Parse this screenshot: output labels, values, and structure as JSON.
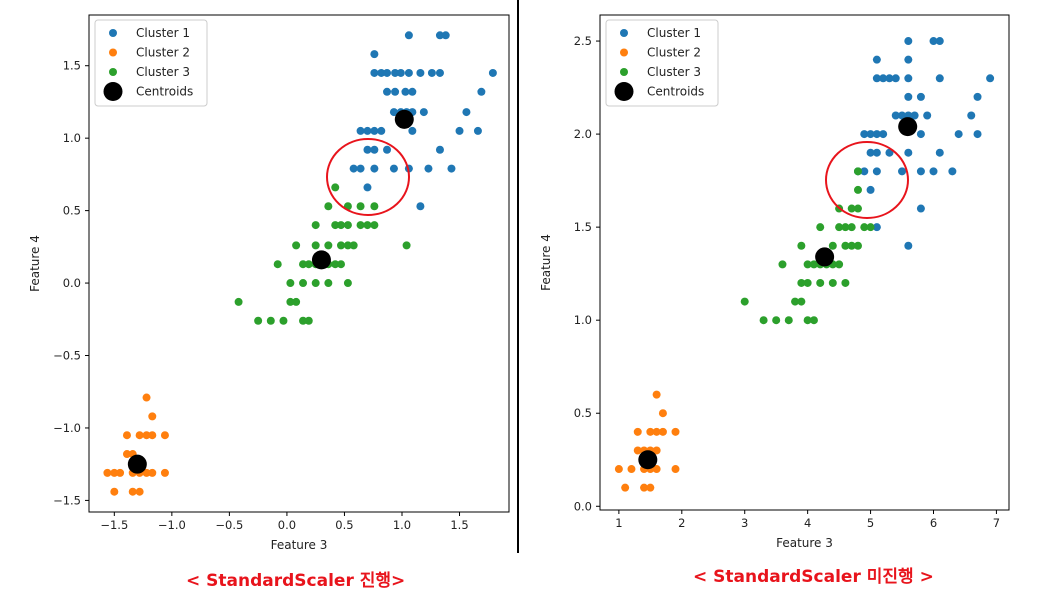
{
  "chart_data": [
    {
      "type": "scatter",
      "xlabel": "Feature 3",
      "ylabel": "Feature 4",
      "xlim": [
        -1.72,
        1.93
      ],
      "ylim": [
        -1.58,
        1.85
      ],
      "xticks": [
        -1.5,
        -1.0,
        -0.5,
        0.0,
        0.5,
        1.0,
        1.5
      ],
      "xtick_labels": [
        "−1.5",
        "−1.0",
        "−0.5",
        "0.0",
        "0.5",
        "1.0",
        "1.5"
      ],
      "yticks": [
        -1.5,
        -1.0,
        -0.5,
        0.0,
        0.5,
        1.0,
        1.5
      ],
      "ytick_labels": [
        "−1.5",
        "−1.0",
        "−0.5",
        "0.0",
        "0.5",
        "1.0",
        "1.5"
      ],
      "legend_position": "top-left",
      "series": [
        {
          "name": "Cluster 1",
          "color": "#1f77b4",
          "points": [
            [
              0.76,
              1.58
            ],
            [
              1.06,
              1.71
            ],
            [
              1.26,
              1.45
            ],
            [
              1.33,
              1.71
            ],
            [
              1.38,
              1.71
            ],
            [
              1.79,
              1.45
            ],
            [
              1.69,
              1.32
            ],
            [
              0.76,
              1.45
            ],
            [
              0.82,
              1.45
            ],
            [
              0.87,
              1.45
            ],
            [
              0.94,
              1.45
            ],
            [
              0.99,
              1.45
            ],
            [
              1.06,
              1.45
            ],
            [
              1.16,
              1.45
            ],
            [
              1.33,
              1.45
            ],
            [
              0.87,
              1.32
            ],
            [
              0.94,
              1.32
            ],
            [
              1.03,
              1.32
            ],
            [
              1.09,
              1.32
            ],
            [
              0.93,
              1.18
            ],
            [
              0.99,
              1.18
            ],
            [
              1.04,
              1.18
            ],
            [
              1.09,
              1.18
            ],
            [
              1.19,
              1.18
            ],
            [
              1.56,
              1.18
            ],
            [
              0.64,
              1.05
            ],
            [
              0.7,
              1.05
            ],
            [
              0.76,
              1.05
            ],
            [
              0.82,
              1.05
            ],
            [
              1.09,
              1.05
            ],
            [
              1.5,
              1.05
            ],
            [
              1.66,
              1.05
            ],
            [
              0.7,
              0.92
            ],
            [
              0.76,
              0.92
            ],
            [
              0.87,
              0.92
            ],
            [
              1.33,
              0.92
            ],
            [
              0.58,
              0.79
            ],
            [
              0.64,
              0.79
            ],
            [
              0.76,
              0.79
            ],
            [
              0.93,
              0.79
            ],
            [
              1.06,
              0.79
            ],
            [
              1.23,
              0.79
            ],
            [
              1.43,
              0.79
            ],
            [
              0.7,
              0.66
            ],
            [
              1.16,
              0.53
            ]
          ]
        },
        {
          "name": "Cluster 2",
          "color": "#ff7f0e",
          "points": [
            [
              -1.22,
              -0.79
            ],
            [
              -1.17,
              -0.92
            ],
            [
              -1.39,
              -1.05
            ],
            [
              -1.28,
              -1.05
            ],
            [
              -1.22,
              -1.05
            ],
            [
              -1.17,
              -1.05
            ],
            [
              -1.06,
              -1.05
            ],
            [
              -1.39,
              -1.18
            ],
            [
              -1.34,
              -1.18
            ],
            [
              -1.45,
              -1.31
            ],
            [
              -1.34,
              -1.31
            ],
            [
              -1.28,
              -1.31
            ],
            [
              -1.22,
              -1.31
            ],
            [
              -1.17,
              -1.31
            ],
            [
              -1.06,
              -1.31
            ],
            [
              -1.56,
              -1.31
            ],
            [
              -1.5,
              -1.31
            ],
            [
              -1.5,
              -1.44
            ],
            [
              -1.34,
              -1.44
            ],
            [
              -1.28,
              -1.44
            ]
          ]
        },
        {
          "name": "Cluster 3",
          "color": "#2ca02c",
          "points": [
            [
              -0.42,
              -0.13
            ],
            [
              -0.25,
              -0.26
            ],
            [
              -0.14,
              -0.26
            ],
            [
              -0.03,
              -0.26
            ],
            [
              0.14,
              -0.26
            ],
            [
              0.19,
              -0.26
            ],
            [
              0.08,
              -0.13
            ],
            [
              0.03,
              -0.13
            ],
            [
              0.03,
              0.0
            ],
            [
              0.14,
              0.0
            ],
            [
              0.25,
              0.0
            ],
            [
              0.36,
              0.0
            ],
            [
              0.53,
              0.0
            ],
            [
              -0.08,
              0.13
            ],
            [
              0.14,
              0.13
            ],
            [
              0.19,
              0.13
            ],
            [
              0.25,
              0.13
            ],
            [
              0.36,
              0.13
            ],
            [
              0.42,
              0.13
            ],
            [
              0.47,
              0.13
            ],
            [
              0.08,
              0.26
            ],
            [
              0.25,
              0.26
            ],
            [
              0.36,
              0.26
            ],
            [
              0.47,
              0.26
            ],
            [
              0.53,
              0.26
            ],
            [
              0.58,
              0.26
            ],
            [
              1.04,
              0.26
            ],
            [
              0.25,
              0.4
            ],
            [
              0.42,
              0.4
            ],
            [
              0.47,
              0.4
            ],
            [
              0.53,
              0.4
            ],
            [
              0.64,
              0.4
            ],
            [
              0.7,
              0.4
            ],
            [
              0.76,
              0.4
            ],
            [
              0.36,
              0.53
            ],
            [
              0.53,
              0.53
            ],
            [
              0.64,
              0.53
            ],
            [
              0.76,
              0.53
            ],
            [
              0.42,
              0.66
            ]
          ]
        },
        {
          "name": "Centroids",
          "color": "#000000",
          "points": [
            [
              1.02,
              1.13
            ],
            [
              -1.3,
              -1.25
            ],
            [
              0.3,
              0.16
            ]
          ]
        }
      ]
    },
    {
      "type": "scatter",
      "xlabel": "Feature 3",
      "ylabel": "Feature 4",
      "xlim": [
        0.7,
        7.2
      ],
      "ylim": [
        -0.02,
        2.64
      ],
      "xticks": [
        1,
        2,
        3,
        4,
        5,
        6,
        7
      ],
      "xtick_labels": [
        "1",
        "2",
        "3",
        "4",
        "5",
        "6",
        "7"
      ],
      "yticks": [
        0.0,
        0.5,
        1.0,
        1.5,
        2.0,
        2.5
      ],
      "ytick_labels": [
        "0.0",
        "0.5",
        "1.0",
        "1.5",
        "2.0",
        "2.5"
      ],
      "legend_position": "top-left",
      "series": [
        {
          "name": "Cluster 1",
          "color": "#1f77b4",
          "points": [
            [
              5.6,
              2.5
            ],
            [
              6.0,
              2.5
            ],
            [
              6.1,
              2.5
            ],
            [
              5.1,
              2.4
            ],
            [
              5.6,
              2.4
            ],
            [
              5.1,
              2.3
            ],
            [
              5.2,
              2.3
            ],
            [
              5.3,
              2.3
            ],
            [
              5.4,
              2.3
            ],
            [
              5.6,
              2.3
            ],
            [
              6.1,
              2.3
            ],
            [
              6.9,
              2.3
            ],
            [
              5.6,
              2.2
            ],
            [
              5.8,
              2.2
            ],
            [
              6.7,
              2.2
            ],
            [
              5.7,
              2.1
            ],
            [
              5.5,
              2.1
            ],
            [
              5.6,
              2.1
            ],
            [
              5.9,
              2.1
            ],
            [
              6.6,
              2.1
            ],
            [
              5.4,
              2.1
            ],
            [
              4.9,
              2.0
            ],
            [
              5.0,
              2.0
            ],
            [
              5.1,
              2.0
            ],
            [
              5.2,
              2.0
            ],
            [
              6.4,
              2.0
            ],
            [
              6.7,
              2.0
            ],
            [
              5.8,
              2.0
            ],
            [
              5.0,
              1.9
            ],
            [
              5.1,
              1.9
            ],
            [
              5.3,
              1.9
            ],
            [
              5.6,
              1.9
            ],
            [
              6.1,
              1.9
            ],
            [
              4.8,
              1.8
            ],
            [
              4.9,
              1.8
            ],
            [
              5.1,
              1.8
            ],
            [
              5.5,
              1.8
            ],
            [
              5.8,
              1.8
            ],
            [
              6.0,
              1.8
            ],
            [
              6.3,
              1.8
            ],
            [
              5.0,
              1.7
            ],
            [
              5.8,
              1.6
            ],
            [
              5.1,
              1.5
            ],
            [
              5.6,
              1.4
            ]
          ]
        },
        {
          "name": "Cluster 2",
          "color": "#ff7f0e",
          "points": [
            [
              1.6,
              0.6
            ],
            [
              1.7,
              0.5
            ],
            [
              1.3,
              0.4
            ],
            [
              1.5,
              0.4
            ],
            [
              1.6,
              0.4
            ],
            [
              1.7,
              0.4
            ],
            [
              1.9,
              0.4
            ],
            [
              1.3,
              0.3
            ],
            [
              1.4,
              0.3
            ],
            [
              1.5,
              0.3
            ],
            [
              1.6,
              0.3
            ],
            [
              1.4,
              0.2
            ],
            [
              1.5,
              0.2
            ],
            [
              1.6,
              0.2
            ],
            [
              1.9,
              0.2
            ],
            [
              1.0,
              0.2
            ],
            [
              1.2,
              0.2
            ],
            [
              1.1,
              0.1
            ],
            [
              1.4,
              0.1
            ],
            [
              1.5,
              0.1
            ]
          ]
        },
        {
          "name": "Cluster 3",
          "color": "#2ca02c",
          "points": [
            [
              3.0,
              1.1
            ],
            [
              3.3,
              1.0
            ],
            [
              3.5,
              1.0
            ],
            [
              3.7,
              1.0
            ],
            [
              4.0,
              1.0
            ],
            [
              4.1,
              1.0
            ],
            [
              3.8,
              1.1
            ],
            [
              3.9,
              1.1
            ],
            [
              3.9,
              1.2
            ],
            [
              4.0,
              1.2
            ],
            [
              4.2,
              1.2
            ],
            [
              4.4,
              1.2
            ],
            [
              4.6,
              1.2
            ],
            [
              3.6,
              1.3
            ],
            [
              4.0,
              1.3
            ],
            [
              4.1,
              1.3
            ],
            [
              4.2,
              1.3
            ],
            [
              4.3,
              1.3
            ],
            [
              4.4,
              1.3
            ],
            [
              4.5,
              1.3
            ],
            [
              3.9,
              1.4
            ],
            [
              4.4,
              1.4
            ],
            [
              4.6,
              1.4
            ],
            [
              4.7,
              1.4
            ],
            [
              4.8,
              1.4
            ],
            [
              4.2,
              1.5
            ],
            [
              4.5,
              1.5
            ],
            [
              4.6,
              1.5
            ],
            [
              4.7,
              1.5
            ],
            [
              4.9,
              1.5
            ],
            [
              5.0,
              1.5
            ],
            [
              4.5,
              1.6
            ],
            [
              4.7,
              1.6
            ],
            [
              4.8,
              1.6
            ],
            [
              4.8,
              1.7
            ],
            [
              4.8,
              1.8
            ]
          ]
        },
        {
          "name": "Centroids",
          "color": "#000000",
          "points": [
            [
              5.59,
              2.04
            ],
            [
              1.46,
              0.25
            ],
            [
              4.27,
              1.34
            ]
          ]
        }
      ]
    }
  ],
  "captions": {
    "left": "< StandardScaler 진행>",
    "right": "< StandardScaler 미진행 >"
  },
  "highlight_color": "#e8141c"
}
